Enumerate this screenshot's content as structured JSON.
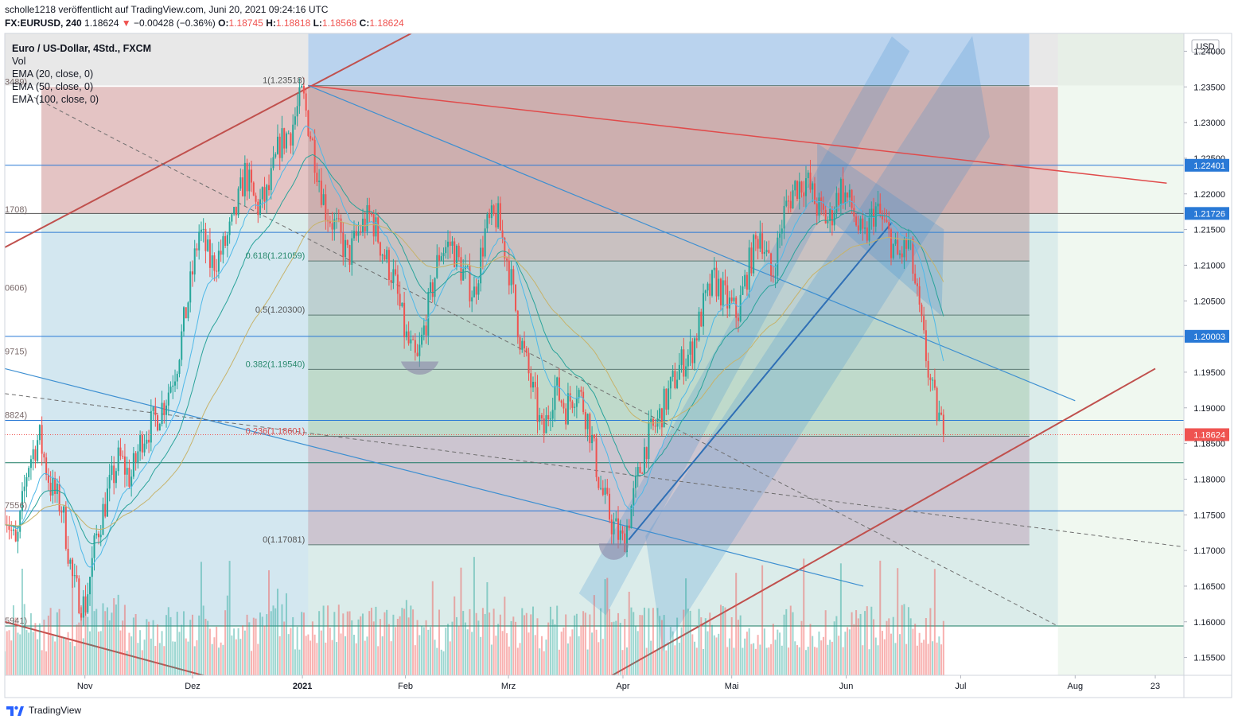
{
  "header": {
    "line1": "scholle1218 veröffentlicht auf TradingView.com, Juni 20, 2021 09:24:16 UTC",
    "symbol": "FX:EURUSD, 240",
    "last": "1.18624",
    "change": "−0.00428 (−0.36%)",
    "o_label": "O:",
    "o": "1.18745",
    "h_label": "H:",
    "h": "1.18818",
    "l_label": "L:",
    "l": "1.18568",
    "c_label": "C:",
    "c": "1.18624"
  },
  "legend": {
    "title": "Euro / US-Dollar, 4Std., FXCM",
    "vol": "Vol",
    "ema20": "EMA (20, close, 0)",
    "ema50": "EMA (50, close, 0)",
    "ema100": "EMA (100, close, 0)"
  },
  "footer": {
    "brand": "TradingView"
  },
  "colors": {
    "up": "#26a69a",
    "down": "#ef5350",
    "ema20": "#4fb9e8",
    "ema50": "#2aa39a",
    "ema100": "#c7b36b",
    "trend_red": "#c0504d",
    "trend_blue": "#3d8fd1"
  },
  "chart_data": {
    "type": "candlestick",
    "currency": "USD",
    "ylim": [
      1.1525,
      1.2425
    ],
    "y_ticks": [
      "1.24000",
      "1.23500",
      "1.23000",
      "1.22500",
      "1.22000",
      "1.21500",
      "1.21000",
      "1.20500",
      "1.20000",
      "1.19500",
      "1.19000",
      "1.18500",
      "1.18000",
      "1.17500",
      "1.17000",
      "1.16500",
      "1.16000",
      "1.15500"
    ],
    "x_labels": [
      {
        "t": 7.0,
        "label": "Nov"
      },
      {
        "t": 16.4,
        "label": "Dez"
      },
      {
        "t": 26.0,
        "label": "2021",
        "bold": true
      },
      {
        "t": 35.0,
        "label": "Feb"
      },
      {
        "t": 44.0,
        "label": "Mrz"
      },
      {
        "t": 54.0,
        "label": "Apr"
      },
      {
        "t": 63.5,
        "label": "Mai"
      },
      {
        "t": 73.5,
        "label": "Jun"
      },
      {
        "t": 83.5,
        "label": "Jul"
      },
      {
        "t": 93.5,
        "label": "Aug"
      },
      {
        "t": 100.5,
        "label": "23"
      }
    ],
    "t_range": [
      0,
      103
    ],
    "price_badges": [
      {
        "value": 1.22401,
        "label": "1.22401",
        "color": "#2979d6"
      },
      {
        "value": 1.21726,
        "label": "1.21726",
        "color": "#2979d6"
      },
      {
        "value": 1.20003,
        "label": "1.20003",
        "color": "#2979d6"
      },
      {
        "value": 1.18624,
        "label": "1.18624",
        "color": "#ef5350"
      }
    ],
    "fib": {
      "t_start": 26.5,
      "t_end": 89.5,
      "levels": [
        {
          "ratio": "1",
          "value": 1.23518,
          "label": "1(1.23518)"
        },
        {
          "ratio": "0.618",
          "value": 1.21059,
          "label": "0.618(1.21059)"
        },
        {
          "ratio": "0.5",
          "value": 1.203,
          "label": "0.5(1.20300)"
        },
        {
          "ratio": "0.382",
          "value": 1.1954,
          "label": "0.382(1.19540)"
        },
        {
          "ratio": "0.236",
          "value": 1.18601,
          "label": "0.236(1.18601)"
        },
        {
          "ratio": "0",
          "value": 1.17081,
          "label": "0(1.17081)"
        }
      ]
    },
    "fib2_left_labels": [
      {
        "value": 1.235,
        "label": "3489)"
      },
      {
        "value": 1.21708,
        "label": "1708)"
      },
      {
        "value": 1.20606,
        "label": "0606)"
      },
      {
        "value": 1.19715,
        "label": "9715)"
      },
      {
        "value": 1.18824,
        "label": "8824)"
      },
      {
        "value": 1.17556,
        "label": "7556)"
      },
      {
        "value": 1.15941,
        "label": "5941)"
      }
    ],
    "ohlc_anchors": [
      [
        0,
        1.176
      ],
      [
        1,
        1.17
      ],
      [
        2,
        1.182
      ],
      [
        3,
        1.186
      ],
      [
        4,
        1.179
      ],
      [
        5,
        1.176
      ],
      [
        6,
        1.165
      ],
      [
        7,
        1.162
      ],
      [
        8,
        1.172
      ],
      [
        9,
        1.178
      ],
      [
        10,
        1.183
      ],
      [
        11,
        1.18
      ],
      [
        12,
        1.186
      ],
      [
        13,
        1.188
      ],
      [
        14,
        1.191
      ],
      [
        15,
        1.196
      ],
      [
        16,
        1.205
      ],
      [
        17,
        1.215
      ],
      [
        18,
        1.21
      ],
      [
        19,
        1.212
      ],
      [
        20,
        1.216
      ],
      [
        21,
        1.223
      ],
      [
        22,
        1.218
      ],
      [
        23,
        1.22
      ],
      [
        24,
        1.227
      ],
      [
        25,
        1.229
      ],
      [
        26,
        1.234
      ],
      [
        27,
        1.226
      ],
      [
        28,
        1.218
      ],
      [
        29,
        1.215
      ],
      [
        30,
        1.211
      ],
      [
        31,
        1.215
      ],
      [
        32,
        1.217
      ],
      [
        33,
        1.212
      ],
      [
        34,
        1.208
      ],
      [
        35,
        1.2
      ],
      [
        36,
        1.196
      ],
      [
        37,
        1.204
      ],
      [
        38,
        1.212
      ],
      [
        39,
        1.213
      ],
      [
        40,
        1.209
      ],
      [
        41,
        1.206
      ],
      [
        42,
        1.215
      ],
      [
        43,
        1.217
      ],
      [
        44,
        1.21
      ],
      [
        45,
        1.2
      ],
      [
        46,
        1.193
      ],
      [
        47,
        1.186
      ],
      [
        48,
        1.193
      ],
      [
        49,
        1.19
      ],
      [
        50,
        1.193
      ],
      [
        51,
        1.188
      ],
      [
        52,
        1.179
      ],
      [
        53,
        1.174
      ],
      [
        54,
        1.171
      ],
      [
        55,
        1.178
      ],
      [
        56,
        1.185
      ],
      [
        57,
        1.188
      ],
      [
        58,
        1.192
      ],
      [
        59,
        1.196
      ],
      [
        60,
        1.198
      ],
      [
        61,
        1.204
      ],
      [
        62,
        1.208
      ],
      [
        63,
        1.205
      ],
      [
        64,
        1.203
      ],
      [
        65,
        1.21
      ],
      [
        66,
        1.215
      ],
      [
        67,
        1.208
      ],
      [
        68,
        1.217
      ],
      [
        69,
        1.221
      ],
      [
        70,
        1.222
      ],
      [
        71,
        1.218
      ],
      [
        72,
        1.216
      ],
      [
        73,
        1.221
      ],
      [
        74,
        1.218
      ],
      [
        75,
        1.213
      ],
      [
        76,
        1.218
      ],
      [
        77,
        1.215
      ],
      [
        78,
        1.211
      ],
      [
        79,
        1.213
      ],
      [
        80,
        1.202
      ],
      [
        81,
        1.192
      ],
      [
        82,
        1.1862
      ]
    ],
    "horizontal_lines": [
      {
        "value": 1.22401,
        "color": "#2979d6"
      },
      {
        "value": 1.21726,
        "color": "#555555"
      },
      {
        "value": 1.2146,
        "color": "#2979d6"
      },
      {
        "value": 1.20003,
        "color": "#2979d6"
      },
      {
        "value": 1.18824,
        "color": "#2979d6"
      },
      {
        "value": 1.1823,
        "color": "#1a7a62"
      },
      {
        "value": 1.17556,
        "color": "#2979d6"
      },
      {
        "value": 1.15941,
        "color": "#1a7a62"
      }
    ]
  }
}
